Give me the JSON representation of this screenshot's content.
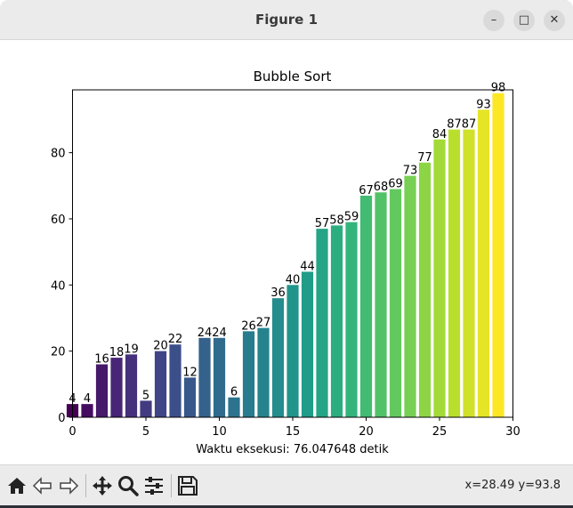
{
  "window": {
    "title": "Figure 1"
  },
  "window_controls": {
    "minimize": "–",
    "maximize": "□",
    "close": "✕"
  },
  "toolbar": {
    "icons": [
      "home-icon",
      "back-icon",
      "forward-icon",
      "pan-icon",
      "zoom-icon",
      "configure-subplots-icon",
      "save-icon"
    ],
    "coordinates": "x=28.49 y=93.8"
  },
  "colors": {
    "titlebar": "#ebebeb",
    "toolbar": "#ebebeb",
    "colormap": "viridis"
  },
  "chart_data": {
    "type": "bar",
    "title": "Bubble Sort",
    "xlabel": "Waktu eksekusi: 76.047648 detik",
    "ylabel": "",
    "x": [
      0,
      1,
      2,
      3,
      4,
      5,
      6,
      7,
      8,
      9,
      10,
      11,
      12,
      13,
      14,
      15,
      16,
      17,
      18,
      19,
      20,
      21,
      22,
      23,
      24,
      25,
      26,
      27,
      28,
      29
    ],
    "values": [
      4,
      4,
      16,
      18,
      19,
      5,
      20,
      22,
      12,
      24,
      24,
      6,
      26,
      27,
      36,
      40,
      44,
      57,
      58,
      59,
      67,
      68,
      69,
      73,
      77,
      84,
      87,
      87,
      93,
      98
    ],
    "xlim": [
      0,
      30
    ],
    "ylim": [
      0,
      99
    ],
    "xticks": [
      "0",
      "5",
      "10",
      "15",
      "20",
      "25",
      "30"
    ],
    "yticks": [
      "0",
      "20",
      "40",
      "60",
      "80"
    ],
    "grid": false,
    "colormap": "viridis"
  }
}
